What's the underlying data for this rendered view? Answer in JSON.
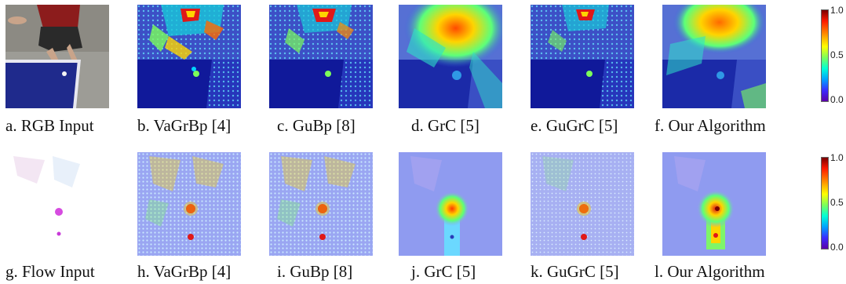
{
  "row1": {
    "captions": [
      "a. RGB Input",
      "b. VaGrBp [4]",
      "c. GuBp [8]",
      "d. GrC [5]",
      "e. GuGrC [5]",
      "f. Our Algorithm"
    ]
  },
  "row2": {
    "captions": [
      "g. Flow Input",
      "h. VaGrBp [4]",
      "i. GuBp [8]",
      "j. GrC [5]",
      "k. GuGrC [5]",
      "l. Our Algorithm"
    ]
  },
  "colorbar": {
    "ticks": [
      "1.0",
      "0.5",
      "0.0"
    ]
  },
  "colors": {
    "table_blue": "#1f2a8c",
    "floor": "#9a9aa3",
    "heat_red": "#c8102e",
    "heat_yellow": "#ffd400",
    "flow_bg": "#8f9bf0"
  }
}
